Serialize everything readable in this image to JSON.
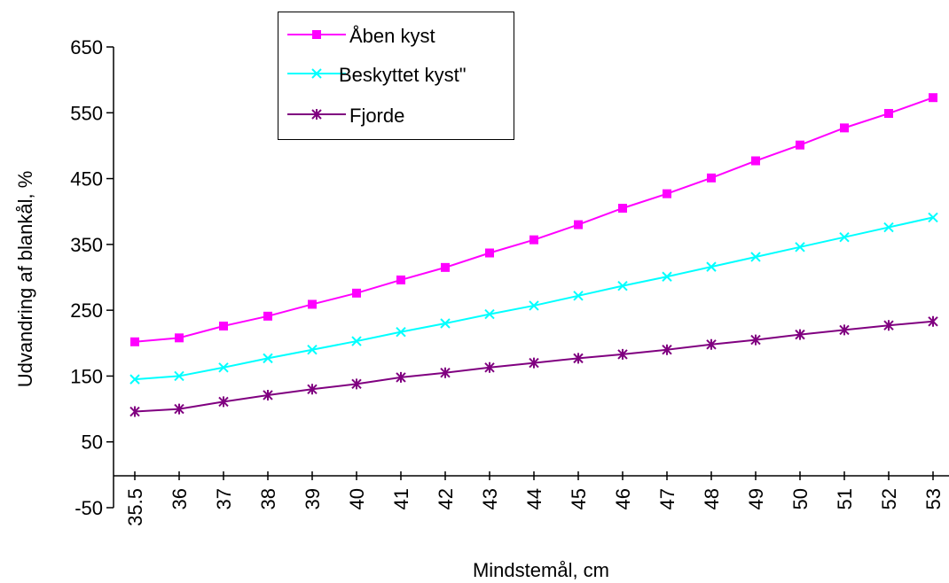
{
  "chart_data": {
    "type": "line",
    "title": "",
    "xlabel": "Mindstemål, cm",
    "ylabel": "Udvandring af blankål, %",
    "categories": [
      "35.5",
      "36",
      "37",
      "38",
      "39",
      "40",
      "41",
      "42",
      "43",
      "44",
      "45",
      "46",
      "47",
      "48",
      "49",
      "50",
      "51",
      "52",
      "53"
    ],
    "y_ticks": [
      "650",
      "550",
      "450",
      "350",
      "250",
      "150",
      "50",
      "-50"
    ],
    "ylim": [
      -50,
      650
    ],
    "grid": false,
    "legend_position": "top-center",
    "series": [
      {
        "name": "Åben kyst",
        "color": "#ff00ff",
        "marker": "square",
        "values": [
          202,
          208,
          226,
          241,
          259,
          276,
          296,
          315,
          337,
          357,
          380,
          405,
          427,
          451,
          477,
          501,
          527,
          549,
          573
        ]
      },
      {
        "name": "Beskyttet kyst\"",
        "color": "#00ffff",
        "marker": "x",
        "values": [
          145,
          150,
          163,
          177,
          190,
          203,
          217,
          230,
          244,
          257,
          272,
          287,
          301,
          316,
          331,
          346,
          361,
          376,
          391
        ]
      },
      {
        "name": "Fjorde",
        "color": "#800080",
        "marker": "asterisk",
        "values": [
          96,
          100,
          111,
          121,
          130,
          138,
          148,
          155,
          163,
          170,
          177,
          183,
          190,
          198,
          205,
          213,
          220,
          227,
          233
        ]
      }
    ]
  }
}
